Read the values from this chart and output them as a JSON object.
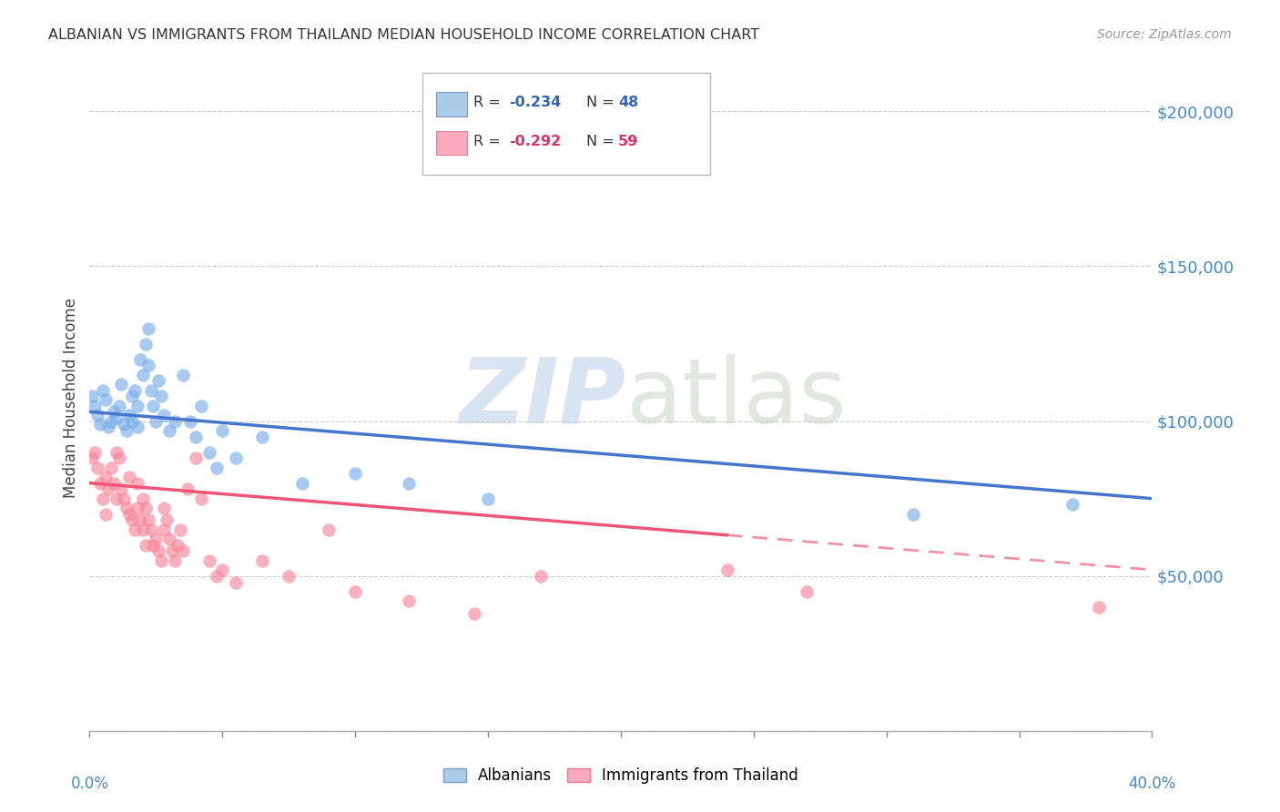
{
  "title": "ALBANIAN VS IMMIGRANTS FROM THAILAND MEDIAN HOUSEHOLD INCOME CORRELATION CHART",
  "source": "Source: ZipAtlas.com",
  "ylabel": "Median Household Income",
  "y_ticks": [
    0,
    50000,
    100000,
    150000,
    200000
  ],
  "y_tick_labels": [
    "",
    "$50,000",
    "$100,000",
    "$150,000",
    "$200,000"
  ],
  "x_range": [
    0.0,
    0.4
  ],
  "y_range": [
    0,
    215000
  ],
  "blue_color": "#7aaee8",
  "pink_color": "#f9869a",
  "blue_line_color": "#4477cc",
  "pink_line_color": "#ee5577",
  "background_color": "#ffffff",
  "alb_x": [
    0.001,
    0.002,
    0.003,
    0.004,
    0.005,
    0.006,
    0.007,
    0.008,
    0.009,
    0.01,
    0.011,
    0.012,
    0.013,
    0.014,
    0.015,
    0.016,
    0.016,
    0.017,
    0.018,
    0.018,
    0.019,
    0.02,
    0.021,
    0.022,
    0.022,
    0.023,
    0.024,
    0.025,
    0.026,
    0.027,
    0.028,
    0.03,
    0.032,
    0.035,
    0.038,
    0.04,
    0.042,
    0.045,
    0.048,
    0.05,
    0.055,
    0.065,
    0.08,
    0.1,
    0.12,
    0.15,
    0.31,
    0.37
  ],
  "alb_y": [
    108000,
    105000,
    102000,
    99000,
    110000,
    107000,
    98000,
    100000,
    103000,
    101000,
    105000,
    112000,
    99000,
    97000,
    102000,
    108000,
    100000,
    110000,
    105000,
    98000,
    120000,
    115000,
    125000,
    130000,
    118000,
    110000,
    105000,
    100000,
    113000,
    108000,
    102000,
    97000,
    100000,
    115000,
    100000,
    95000,
    105000,
    90000,
    85000,
    97000,
    88000,
    95000,
    80000,
    83000,
    80000,
    75000,
    70000,
    73000
  ],
  "thai_x": [
    0.001,
    0.002,
    0.003,
    0.004,
    0.005,
    0.006,
    0.006,
    0.007,
    0.008,
    0.009,
    0.01,
    0.01,
    0.011,
    0.012,
    0.013,
    0.014,
    0.015,
    0.015,
    0.016,
    0.017,
    0.018,
    0.018,
    0.019,
    0.02,
    0.02,
    0.021,
    0.021,
    0.022,
    0.023,
    0.024,
    0.025,
    0.026,
    0.027,
    0.028,
    0.028,
    0.029,
    0.03,
    0.031,
    0.032,
    0.033,
    0.034,
    0.035,
    0.037,
    0.04,
    0.042,
    0.045,
    0.048,
    0.05,
    0.055,
    0.065,
    0.075,
    0.09,
    0.1,
    0.12,
    0.145,
    0.17,
    0.24,
    0.27,
    0.38
  ],
  "thai_y": [
    88000,
    90000,
    85000,
    80000,
    75000,
    70000,
    82000,
    78000,
    85000,
    80000,
    75000,
    90000,
    88000,
    78000,
    75000,
    72000,
    70000,
    82000,
    68000,
    65000,
    72000,
    80000,
    68000,
    75000,
    65000,
    72000,
    60000,
    68000,
    65000,
    60000,
    62000,
    58000,
    55000,
    65000,
    72000,
    68000,
    62000,
    58000,
    55000,
    60000,
    65000,
    58000,
    78000,
    88000,
    75000,
    55000,
    50000,
    52000,
    48000,
    55000,
    50000,
    65000,
    45000,
    42000,
    38000,
    50000,
    52000,
    45000,
    40000
  ],
  "blue_line_x0": 0.0,
  "blue_line_y0": 103000,
  "blue_line_x1": 0.4,
  "blue_line_y1": 75000,
  "pink_line_x0": 0.0,
  "pink_line_y0": 80000,
  "pink_line_x1": 0.4,
  "pink_line_y1": 52000,
  "pink_solid_cutoff": 0.24,
  "watermark_zip": "ZIP",
  "watermark_atlas": "atlas"
}
